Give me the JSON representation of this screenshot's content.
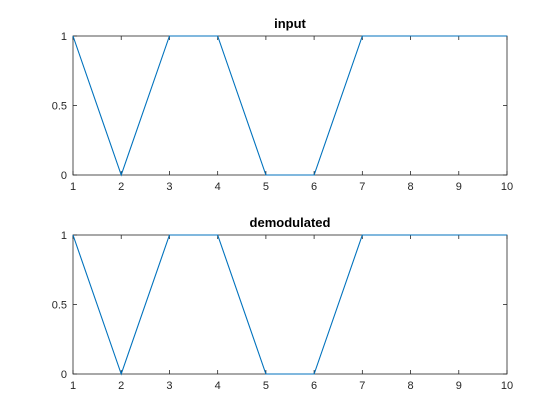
{
  "figure": {
    "background": "#ffffff",
    "axes_color": "#262626",
    "line_color": "#0072bd"
  },
  "chart_data": [
    {
      "type": "line",
      "title": "input",
      "xlabel": "",
      "ylabel": "",
      "xlim": [
        1,
        10
      ],
      "ylim": [
        0,
        1
      ],
      "xticks": [
        1,
        2,
        3,
        4,
        5,
        6,
        7,
        8,
        9,
        10
      ],
      "yticks": [
        0,
        0.5,
        1
      ],
      "ytick_labels": [
        "0",
        "0.5",
        "1"
      ],
      "grid": false,
      "x": [
        1,
        2,
        3,
        4,
        5,
        6,
        7,
        8,
        9,
        10
      ],
      "series": [
        {
          "values": [
            1,
            0,
            1,
            1,
            0,
            0,
            1,
            1,
            1,
            1
          ]
        }
      ]
    },
    {
      "type": "line",
      "title": "demodulated",
      "xlabel": "",
      "ylabel": "",
      "xlim": [
        1,
        10
      ],
      "ylim": [
        0,
        1
      ],
      "xticks": [
        1,
        2,
        3,
        4,
        5,
        6,
        7,
        8,
        9,
        10
      ],
      "yticks": [
        0,
        0.5,
        1
      ],
      "ytick_labels": [
        "0",
        "0.5",
        "1"
      ],
      "grid": false,
      "x": [
        1,
        2,
        3,
        4,
        5,
        6,
        7,
        8,
        9,
        10
      ],
      "series": [
        {
          "values": [
            1,
            0,
            1,
            1,
            0,
            0,
            1,
            1,
            1,
            1
          ]
        }
      ]
    }
  ]
}
